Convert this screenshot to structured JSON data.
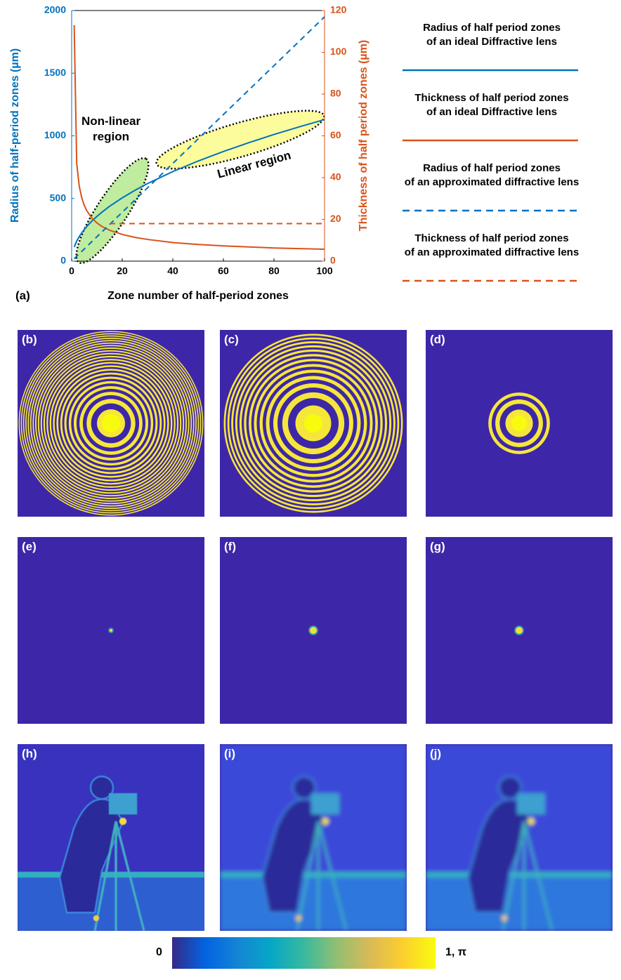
{
  "chart_data": {
    "type": "line",
    "xlabel": "Zone number of half-period zones",
    "ylabel": "Radius of half-period zones (µm)",
    "y2label": "Thickness of half period zones (µm)",
    "panel_label": "(a)",
    "annotations": [
      "Non-linear\nregion",
      "Linear region"
    ],
    "x": [
      1,
      2,
      3,
      4,
      5,
      6,
      8,
      10,
      12,
      15,
      20,
      25,
      30,
      40,
      50,
      60,
      70,
      80,
      90,
      100
    ],
    "series": [
      {
        "name": "Radius of half period zones\nof an ideal Diffractive lens",
        "color": "#0072BD",
        "style": "solid",
        "axis": "y",
        "values": [
          113,
          160,
          196,
          226,
          253,
          277,
          320,
          357,
          391,
          438,
          505,
          565,
          619,
          715,
          799,
          875,
          945,
          1011,
          1072,
          1130
        ]
      },
      {
        "name": "Thickness of half period zones\nof an ideal Diffractive lens",
        "color": "#D95319",
        "style": "solid",
        "axis": "y2",
        "values": [
          113,
          46.8,
          35.9,
          30.3,
          26.7,
          24.1,
          20.6,
          18.3,
          16.6,
          14.8,
          12.8,
          11.4,
          10.4,
          8.9,
          8.0,
          7.3,
          6.8,
          6.3,
          6.0,
          5.7
        ]
      },
      {
        "name": "Radius of half period zones\nof an approximated diffractive lens",
        "color": "#0072BD",
        "style": "dashed",
        "axis": "y",
        "values": [
          19.5,
          39,
          58.5,
          78,
          97.5,
          117,
          156,
          195,
          234,
          292.5,
          390,
          487.5,
          585,
          780,
          975,
          1170,
          1365,
          1560,
          1755,
          1950
        ]
      },
      {
        "name": "Thickness of half period zones\nof an approximated diffractive lens",
        "color": "#D95319",
        "style": "dashed",
        "axis": "y2",
        "values": [
          null,
          null,
          null,
          null,
          null,
          null,
          null,
          null,
          null,
          18,
          18,
          18,
          18,
          18,
          18,
          18,
          18,
          18,
          18,
          18
        ]
      }
    ],
    "xlim": [
      0,
      100
    ],
    "xticks": [
      0,
      20,
      40,
      60,
      80,
      100
    ],
    "ylim": [
      0,
      2000
    ],
    "yticks": [
      0,
      500,
      1000,
      1500,
      2000
    ],
    "y2lim": [
      0,
      120
    ],
    "y2ticks": [
      0,
      20,
      40,
      60,
      80,
      100,
      120
    ]
  },
  "panels": [
    {
      "label": "(b)"
    },
    {
      "label": "(c)"
    },
    {
      "label": "(d)"
    },
    {
      "label": "(e)"
    },
    {
      "label": "(f)"
    },
    {
      "label": "(g)"
    },
    {
      "label": "(h)"
    },
    {
      "label": "(i)"
    },
    {
      "label": "(j)"
    }
  ],
  "colorbar": {
    "min_label": "0",
    "max_label": "1, π"
  }
}
